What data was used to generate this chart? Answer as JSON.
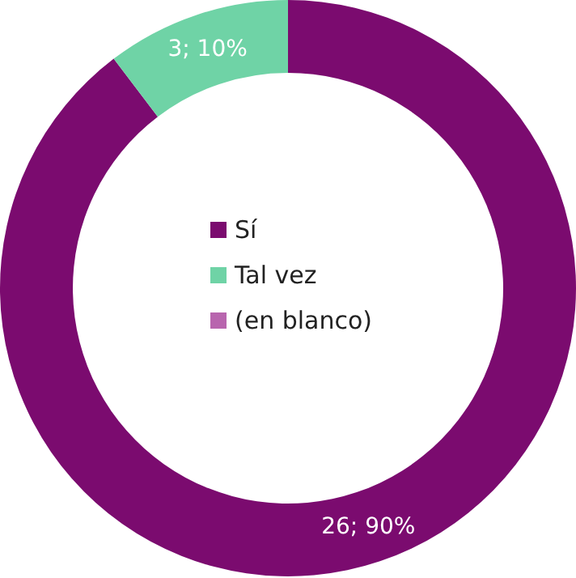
{
  "chart_data": {
    "type": "donut",
    "categories": [
      "Sí",
      "Tal vez",
      "(en blanco)"
    ],
    "values": [
      26,
      3,
      0
    ],
    "colors": [
      "#7b0b6f",
      "#6fd3a6",
      "#b865ae"
    ],
    "value_labels": [
      "26; 90%",
      "3; 10%",
      null
    ],
    "legend": "center"
  }
}
